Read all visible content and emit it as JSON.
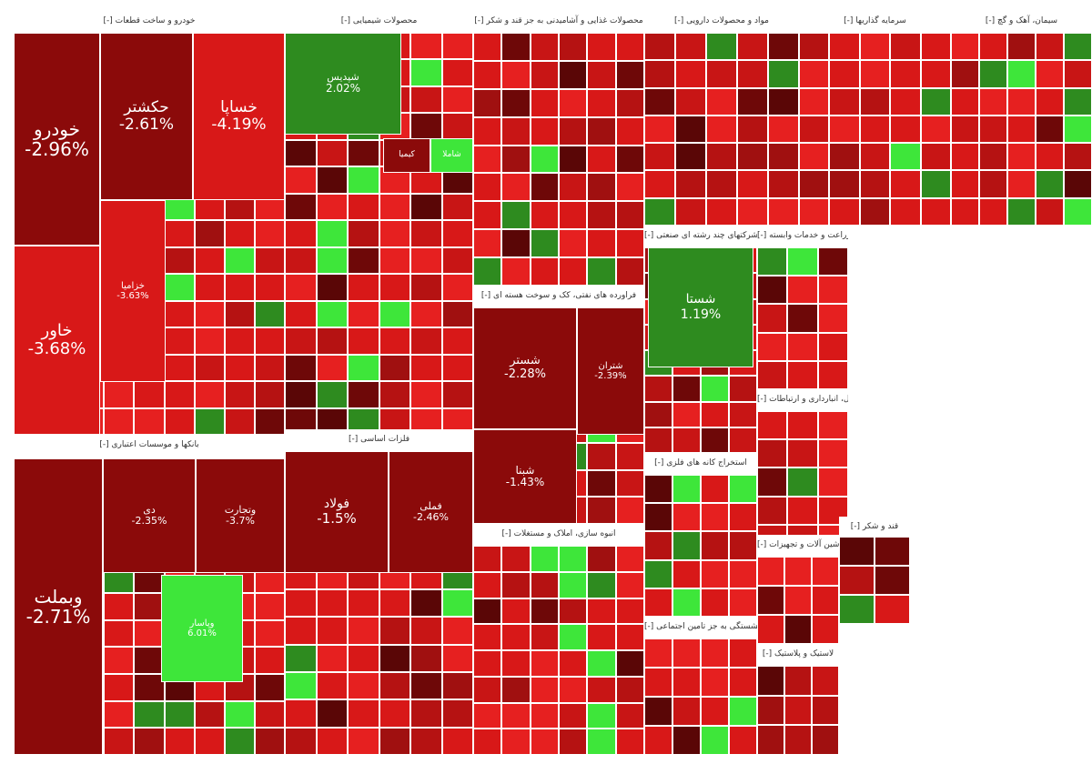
{
  "chart_data": {
    "type": "treemap",
    "sections": [
      {
        "name": "خودرو و ساخت قطعات",
        "tiles": [
          {
            "symbol": "خودرو",
            "change": "-2.96%"
          },
          {
            "symbol": "خاور",
            "change": "-3.68%"
          },
          {
            "symbol": "حکشتر",
            "change": "-2.61%"
          },
          {
            "symbol": "خساپا",
            "change": "-4.19%"
          },
          {
            "symbol": "خزامیا",
            "change": "-3.63%"
          }
        ]
      },
      {
        "name": "محصولات شیمیایی",
        "tiles": [
          {
            "symbol": "شپدیس",
            "change": "2.02%"
          },
          {
            "symbol": "کیمیا",
            "change": ""
          },
          {
            "symbol": "شاملا",
            "change": ""
          }
        ]
      },
      {
        "name": "محصولات غذایی و آشامیدنی به جز قند و شکر",
        "tiles": []
      },
      {
        "name": "مواد و محصولات دارویی",
        "tiles": []
      },
      {
        "name": "سیمان، آهک و گچ",
        "tiles": []
      },
      {
        "name": "بانکها و موسسات اعتباری",
        "tiles": [
          {
            "symbol": "وبملت",
            "change": "-2.71%"
          },
          {
            "symbol": "دی",
            "change": "-2.35%"
          },
          {
            "symbol": "وتجارت",
            "change": "-3.7%"
          },
          {
            "symbol": "وپاسار",
            "change": "6.01%"
          }
        ]
      },
      {
        "name": "فلزات اساسی",
        "tiles": [
          {
            "symbol": "فولاد",
            "change": "-1.5%"
          },
          {
            "symbol": "فملی",
            "change": "-2.46%"
          }
        ]
      },
      {
        "name": "فراورده های نفتی، کک و سوخت هسته ای",
        "tiles": [
          {
            "symbol": "شستر",
            "change": "-2.28%"
          },
          {
            "symbol": "شبنا",
            "change": "-1.43%"
          },
          {
            "symbol": "شتران",
            "change": "-2.39%"
          }
        ]
      },
      {
        "name": "انبوه سازی، املاک و مستغلات",
        "tiles": []
      },
      {
        "name": "شرکتهای چند رشته ای صنعتی",
        "tiles": [
          {
            "symbol": "شستا",
            "change": "1.19%"
          }
        ]
      },
      {
        "name": "زراعت و خدمات وابسته",
        "tiles": []
      },
      {
        "name": "استخراج کانه های فلزی",
        "tiles": []
      },
      {
        "name": "حمل و نقل، انبارداری و ارتباطات",
        "tiles": []
      },
      {
        "name": "قند و شکر",
        "tiles": []
      },
      {
        "name": "ماشین آلات و تجهیزات",
        "tiles": []
      },
      {
        "name": "سرمایه گذاریها",
        "tiles": []
      },
      {
        "name": "بیمه و صندوق بازنشستگی به جز تامین اجتماعی",
        "tiles": []
      },
      {
        "name": "لاستیک و پلاستیک",
        "tiles": []
      }
    ]
  },
  "colors": {
    "strong_down": "#8b0a0a",
    "down": "#d81818",
    "up": "#2e8b1f",
    "strong_up": "#3ee63a"
  }
}
